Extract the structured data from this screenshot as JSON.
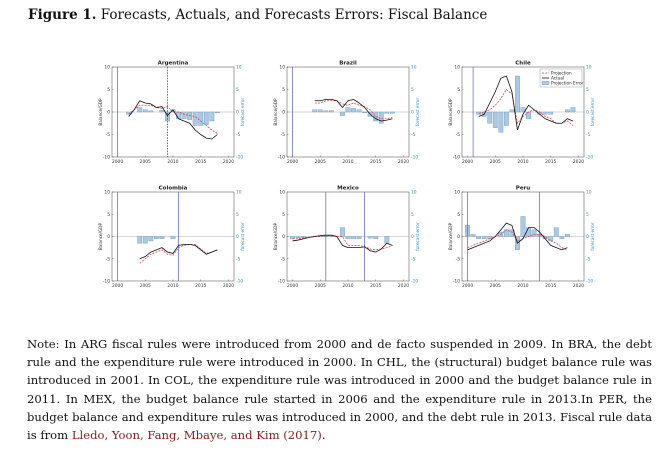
{
  "figure": {
    "label": "Figure 1.",
    "title": "Forecasts, Actuals, and Forecasts Errors: Fiscal Balance"
  },
  "colors": {
    "actual": "#111111",
    "projection": "#e0404a",
    "error_fill": "#a9c9e4",
    "error_stroke": "#5a7fa6",
    "rule_line": "#5560b8",
    "right_axis": "#2f8fcf"
  },
  "chart_data": [
    {
      "type": "line+bar",
      "title": "Argentina",
      "ylabel": "Balance/GDP",
      "ylabel_right": "forecast error",
      "xlim": [
        1999,
        2021
      ],
      "ylim": [
        -10,
        10
      ],
      "x_ticks": [
        "2000",
        "2005",
        "2010",
        "2015",
        "2020"
      ],
      "y_ticks": [
        "10",
        "5",
        "0",
        "-5",
        "-10"
      ],
      "rule_lines": [
        {
          "year": 2000,
          "style": "solid"
        },
        {
          "year": 2009,
          "style": "dashed"
        }
      ],
      "x": [
        2002,
        2003,
        2004,
        2005,
        2006,
        2007,
        2008,
        2009,
        2010,
        2011,
        2012,
        2013,
        2014,
        2015,
        2016,
        2017,
        2018
      ],
      "actual": [
        -1.0,
        0.5,
        2.5,
        2.0,
        1.8,
        1.0,
        1.2,
        -0.8,
        0.5,
        -1.5,
        -2.0,
        -2.5,
        -4.0,
        -5.0,
        -5.8,
        -6.0,
        -5.0
      ],
      "projection": [
        -0.5,
        0.5,
        1.5,
        1.5,
        1.5,
        1.0,
        0.8,
        1.2,
        0.0,
        0.0,
        -0.5,
        -0.8,
        -1.0,
        -2.0,
        -3.0,
        -4.0,
        -4.8
      ],
      "forecast_error": [
        -0.5,
        0.0,
        1.0,
        0.5,
        0.3,
        0.0,
        0.4,
        -2.0,
        0.5,
        -1.5,
        -1.5,
        -1.7,
        -3.0,
        -3.0,
        -2.8,
        -2.0,
        -0.2
      ]
    },
    {
      "type": "line+bar",
      "title": "Brazil",
      "ylabel": "Balance/GDP",
      "ylabel_right": "forecast error",
      "xlim": [
        1999,
        2021
      ],
      "ylim": [
        -10,
        10
      ],
      "x_ticks": [
        "2000",
        "2005",
        "2010",
        "2015",
        "2020"
      ],
      "y_ticks": [
        "10",
        "5",
        "0",
        "-5",
        "-10"
      ],
      "rule_lines": [
        {
          "year": 2000,
          "style": "solid"
        }
      ],
      "x": [
        2004,
        2005,
        2006,
        2007,
        2008,
        2009,
        2010,
        2011,
        2012,
        2013,
        2014,
        2015,
        2016,
        2017,
        2018
      ],
      "actual": [
        2.5,
        2.5,
        2.8,
        2.8,
        2.5,
        1.0,
        2.5,
        2.8,
        2.0,
        1.0,
        -0.5,
        -1.5,
        -2.0,
        -1.8,
        -1.5
      ],
      "projection": [
        2.0,
        2.0,
        2.5,
        2.5,
        2.5,
        1.8,
        1.5,
        2.0,
        1.5,
        1.2,
        0.5,
        -1.0,
        -1.5,
        -1.5,
        -1.2
      ],
      "forecast_error": [
        0.5,
        0.5,
        0.3,
        0.3,
        0.0,
        -0.8,
        1.0,
        0.8,
        0.5,
        -0.2,
        -1.0,
        -2.0,
        -2.5,
        -0.3,
        -0.3
      ]
    },
    {
      "type": "line+bar",
      "title": "Chile",
      "ylabel": "Balance/GDP",
      "ylabel_right": "forecast error",
      "xlim": [
        1999,
        2021
      ],
      "ylim": [
        -10,
        10
      ],
      "x_ticks": [
        "2000",
        "2005",
        "2010",
        "2015",
        "2020"
      ],
      "y_ticks": [
        "10",
        "5",
        "0",
        "-5",
        "-10"
      ],
      "rule_lines": [
        {
          "year": 2001,
          "style": "solid"
        }
      ],
      "legend": [
        "Projection",
        "Actual",
        "Projection Error"
      ],
      "legend_position": "top-right",
      "x": [
        2002,
        2003,
        2004,
        2005,
        2006,
        2007,
        2008,
        2009,
        2010,
        2011,
        2012,
        2013,
        2014,
        2015,
        2016,
        2017,
        2018,
        2019
      ],
      "actual": [
        -1.0,
        -0.5,
        2.0,
        4.5,
        7.5,
        8.0,
        4.5,
        -4.0,
        -0.5,
        1.5,
        0.5,
        -0.5,
        -1.5,
        -2.0,
        -2.5,
        -2.5,
        -1.5,
        -2.0
      ],
      "projection": [
        -0.5,
        0.0,
        0.5,
        1.5,
        3.0,
        5.0,
        4.0,
        -2.5,
        -1.0,
        0.0,
        0.5,
        0.0,
        -1.0,
        -1.5,
        -2.5,
        -2.5,
        -2.0,
        -3.0
      ],
      "forecast_error": [
        -0.5,
        -1.0,
        -2.5,
        -3.5,
        -4.5,
        -3.0,
        0.5,
        8.0,
        1.0,
        -1.5,
        0.0,
        -0.5,
        -0.5,
        -0.5,
        0.0,
        0.0,
        0.5,
        1.0
      ]
    },
    {
      "type": "line+bar",
      "title": "Colombia",
      "ylabel": "Balance/GDP",
      "ylabel_right": "forecast error",
      "xlim": [
        1999,
        2021
      ],
      "ylim": [
        -10,
        10
      ],
      "x_ticks": [
        "2000",
        "2005",
        "2010",
        "2015",
        "2020"
      ],
      "y_ticks": [
        "10",
        "5",
        "0",
        "-5",
        "-10"
      ],
      "rule_lines": [
        {
          "year": 2000,
          "style": "solid"
        },
        {
          "year": 2011,
          "style": "solid"
        }
      ],
      "x": [
        2004,
        2005,
        2006,
        2007,
        2008,
        2009,
        2010,
        2011,
        2012,
        2013,
        2014,
        2015,
        2016,
        2017,
        2018
      ],
      "actual": [
        -5.0,
        -4.5,
        -3.5,
        -3.0,
        -2.5,
        -3.5,
        -3.8,
        -2.0,
        -1.8,
        -1.8,
        -2.0,
        -3.0,
        -4.0,
        -3.5,
        -3.0
      ],
      "projection": [
        -6.0,
        -5.0,
        -4.0,
        -3.5,
        -3.0,
        -4.0,
        -4.2,
        -2.5,
        -2.0,
        -1.8,
        -1.8,
        -2.8,
        -3.8,
        -3.5,
        -3.0
      ],
      "forecast_error": [
        -1.5,
        -1.5,
        -1.0,
        -0.5,
        -0.5,
        0.0,
        -0.5,
        0.0,
        0.0,
        0.0,
        0.0,
        0.0,
        0.0,
        0.0,
        0.0
      ]
    },
    {
      "type": "line+bar",
      "title": "Mexico",
      "ylabel": "Balance/GDP",
      "ylabel_right": "forecast error",
      "xlim": [
        1999,
        2021
      ],
      "ylim": [
        -10,
        10
      ],
      "x_ticks": [
        "2000",
        "2005",
        "2010",
        "2015",
        "2020"
      ],
      "y_ticks": [
        "10",
        "5",
        "0",
        "-5",
        "-10"
      ],
      "rule_lines": [
        {
          "year": 2006,
          "style": "solid"
        },
        {
          "year": 2013,
          "style": "solid"
        }
      ],
      "x": [
        2000,
        2001,
        2002,
        2003,
        2004,
        2005,
        2006,
        2007,
        2008,
        2009,
        2010,
        2011,
        2012,
        2013,
        2014,
        2015,
        2016,
        2017,
        2018
      ],
      "actual": [
        -1.0,
        -0.8,
        -0.5,
        -0.2,
        0.0,
        0.2,
        0.3,
        0.3,
        0.0,
        -2.0,
        -2.5,
        -2.5,
        -2.5,
        -2.3,
        -3.2,
        -3.5,
        -2.8,
        -1.5,
        -2.0
      ],
      "projection": [
        -0.5,
        -0.5,
        -0.3,
        -0.2,
        0.0,
        0.0,
        0.2,
        0.2,
        0.0,
        0.0,
        -2.0,
        -2.0,
        -2.0,
        -2.3,
        -2.8,
        -3.0,
        -2.8,
        -2.5,
        -2.0
      ],
      "forecast_error": [
        -0.5,
        -0.3,
        -0.2,
        0.0,
        0.0,
        0.2,
        0.1,
        0.1,
        0.0,
        2.0,
        -0.5,
        -0.5,
        -0.5,
        0.0,
        -0.4,
        -0.5,
        0.0,
        -1.5,
        0.0
      ]
    },
    {
      "type": "line+bar",
      "title": "Peru",
      "ylabel": "Balance/GDP",
      "ylabel_right": "forecast error",
      "xlim": [
        1999,
        2021
      ],
      "ylim": [
        -10,
        10
      ],
      "x_ticks": [
        "2000",
        "2005",
        "2010",
        "2015",
        "2020"
      ],
      "y_ticks": [
        "10",
        "5",
        "0",
        "-5",
        "-10"
      ],
      "rule_lines": [
        {
          "year": 2000,
          "style": "solid"
        },
        {
          "year": 2013,
          "style": "solid"
        }
      ],
      "x": [
        2000,
        2001,
        2002,
        2003,
        2004,
        2005,
        2006,
        2007,
        2008,
        2009,
        2010,
        2011,
        2012,
        2013,
        2014,
        2015,
        2016,
        2017,
        2018
      ],
      "actual": [
        -3.0,
        -2.5,
        -2.0,
        -1.5,
        -1.0,
        0.0,
        1.5,
        3.0,
        2.5,
        -1.5,
        -0.5,
        2.0,
        2.0,
        1.0,
        -0.5,
        -2.0,
        -2.5,
        -3.0,
        -2.5
      ],
      "projection": [
        -2.5,
        -2.0,
        -1.5,
        -1.0,
        -0.5,
        0.0,
        0.5,
        1.5,
        1.0,
        -1.0,
        -0.5,
        0.0,
        0.5,
        0.5,
        0.0,
        -1.0,
        -1.5,
        -2.5,
        -3.0
      ],
      "forecast_error": [
        2.5,
        0.5,
        -0.5,
        -0.5,
        -0.5,
        0.0,
        1.0,
        1.5,
        1.5,
        -3.0,
        4.5,
        2.0,
        1.5,
        0.5,
        -0.5,
        -1.0,
        2.0,
        -0.5,
        0.5
      ]
    }
  ],
  "note": {
    "text": " Note: In ARG fiscal rules were introduced from 2000 and de facto suspended in 2009. In BRA, the debt rule and the expenditure rule were introduced in 2000. In CHL, the (structural) budget balance rule was introduced in 2001. In COL, the expenditure rule was introduced in 2000 and the budget balance rule in 2011. In MEX, the budget balance rule started in 2006 and the expenditure rule in 2013.In PER, the budget balance and expenditure rules was introduced in 2000, and the debt rule in 2013. Fiscal rule data is from ",
    "citation": "Lledo, Yoon, Fang, Mbaye, and Kim (2017)",
    "end": "."
  }
}
